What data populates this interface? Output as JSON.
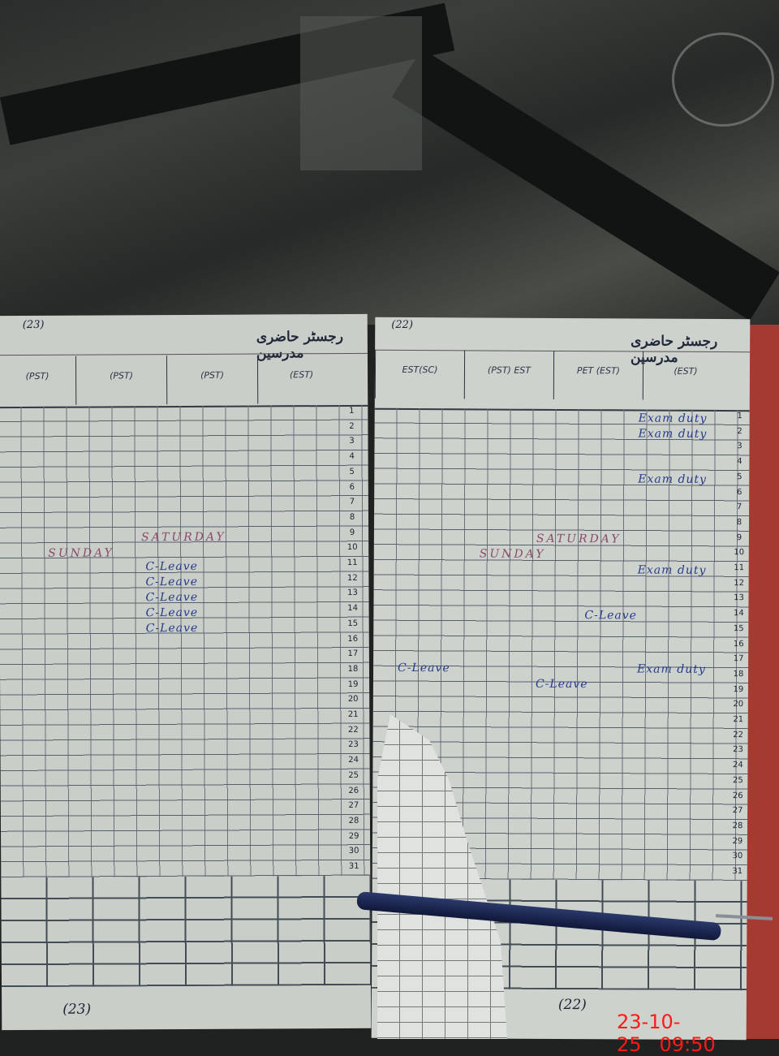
{
  "photo": {
    "timestamp_date": "23-10-25",
    "timestamp_time": "09:50"
  },
  "left_page": {
    "page_number": "(23)",
    "title": "رجسٹر حاضری مدرسین",
    "columns": [
      "(PST)",
      "(PST)",
      "(PST)",
      "(EST)"
    ],
    "annotations": {
      "saturday": "SATURDAY",
      "sunday": "SUNDAY",
      "leave_rows": [
        "C-Leave",
        "C-Leave",
        "C-Leave",
        "C-Leave",
        "C-Leave"
      ]
    }
  },
  "right_page": {
    "page_number": "(22)",
    "title": "رجسٹر حاضری مدرسین",
    "columns": [
      "EST(SC)",
      "(PST) EST",
      "PET (EST)",
      "(EST)"
    ],
    "annotations": {
      "saturday": "SATURDAY",
      "sunday": "SUNDAY",
      "exam_duty_rows": [
        "Exam duty",
        "Exam duty",
        "Exam duty",
        "Exam duty",
        "Exam duty"
      ],
      "leave_rows": [
        "C-Leave",
        "C-Leave",
        "C-Leave"
      ]
    }
  },
  "rows": [
    "1",
    "2",
    "3",
    "4",
    "5",
    "6",
    "7",
    "8",
    "9",
    "10",
    "11",
    "12",
    "13",
    "14",
    "15",
    "16",
    "17",
    "18",
    "19",
    "20",
    "21",
    "22",
    "23",
    "24",
    "25",
    "26",
    "27",
    "28",
    "29",
    "30",
    "31"
  ],
  "colors": {
    "ink": "#273a8a",
    "paper": "#c9cec9",
    "timestamp": "#ff1a1a"
  }
}
